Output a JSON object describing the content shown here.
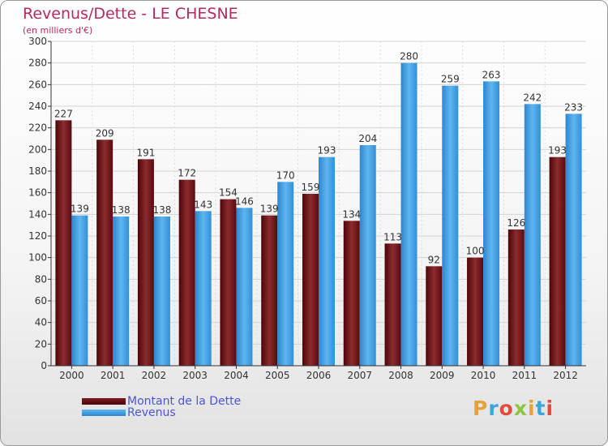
{
  "header": {
    "title": "Revenus/Dette - LE CHESNE",
    "subtitle": "(en milliers d'€)"
  },
  "legend": {
    "dette_label": "Montant de la Dette",
    "revenus_label": "Revenus"
  },
  "logo": {
    "text": "Proxiti"
  },
  "colors": {
    "dette": "#6b0f15",
    "revenus": "#4aa3e6",
    "title": "#b52a5e"
  },
  "chart_data": {
    "type": "bar",
    "title": "Revenus/Dette - LE CHESNE",
    "ylabel": "(en milliers d'€)",
    "xlabel": "",
    "ylim": [
      0,
      300
    ],
    "yticks": [
      0,
      20,
      40,
      60,
      80,
      100,
      120,
      140,
      160,
      180,
      200,
      220,
      240,
      260,
      280,
      300
    ],
    "grid": true,
    "legend_position": "bottom-left",
    "categories": [
      "2000",
      "2001",
      "2002",
      "2003",
      "2004",
      "2005",
      "2006",
      "2007",
      "2008",
      "2009",
      "2010",
      "2011",
      "2012"
    ],
    "series": [
      {
        "name": "Montant de la Dette",
        "values": [
          227,
          209,
          191,
          172,
          154,
          139,
          159,
          134,
          113,
          92,
          100,
          126,
          193
        ]
      },
      {
        "name": "Revenus",
        "values": [
          139,
          138,
          138,
          143,
          146,
          170,
          193,
          204,
          280,
          259,
          263,
          242,
          233
        ]
      }
    ]
  }
}
